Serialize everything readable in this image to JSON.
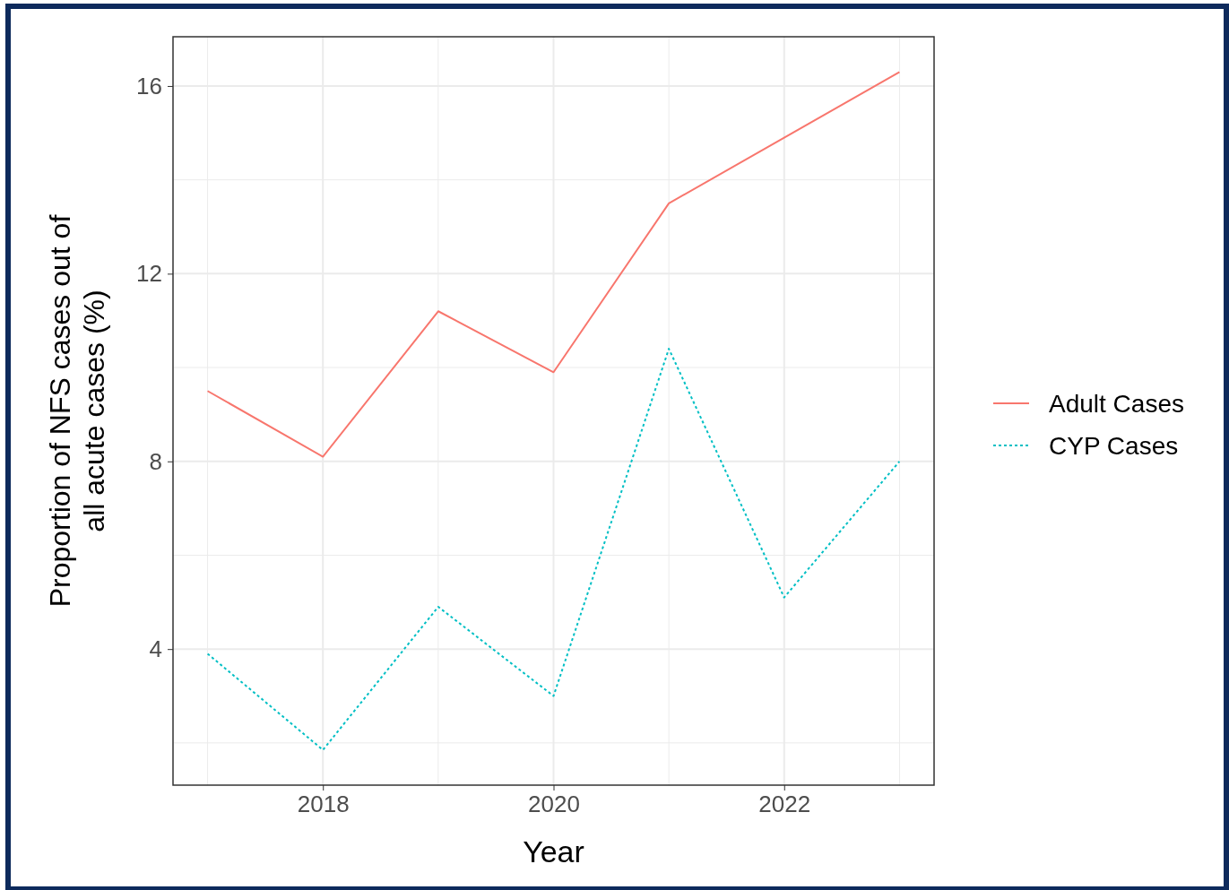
{
  "chart_data": {
    "type": "line",
    "xlabel": "Year",
    "ylabel": "Proportion of NFS cases out of all acute cases (%)",
    "x": [
      2017,
      2018,
      2019,
      2020,
      2021,
      2022,
      2023
    ],
    "series": [
      {
        "name": "Adult Cases",
        "color": "#f8766d",
        "line_style": "solid",
        "values": [
          9.5,
          8.1,
          11.2,
          9.9,
          13.5,
          14.9,
          16.3
        ]
      },
      {
        "name": "CYP Cases",
        "color": "#00bfc4",
        "line_style": "dotted",
        "values": [
          3.9,
          1.85,
          4.9,
          3.0,
          10.4,
          5.1,
          8.0
        ]
      }
    ],
    "xlim": [
      2016.7,
      2023.3
    ],
    "ylim": [
      1.1,
      17.05
    ],
    "xticks": [
      {
        "value": 2017,
        "label": null
      },
      2018,
      {
        "value": 2019,
        "label": null
      },
      2020,
      {
        "value": 2021,
        "label": null
      },
      2022,
      {
        "value": 2023,
        "label": null
      }
    ],
    "yticks": [
      {
        "value": 2,
        "label": null
      },
      4,
      {
        "value": 6,
        "label": null
      },
      8,
      {
        "value": 10,
        "label": null
      },
      12,
      {
        "value": 14,
        "label": null
      },
      16
    ],
    "grid": true,
    "legend": "right",
    "marker": "none"
  }
}
